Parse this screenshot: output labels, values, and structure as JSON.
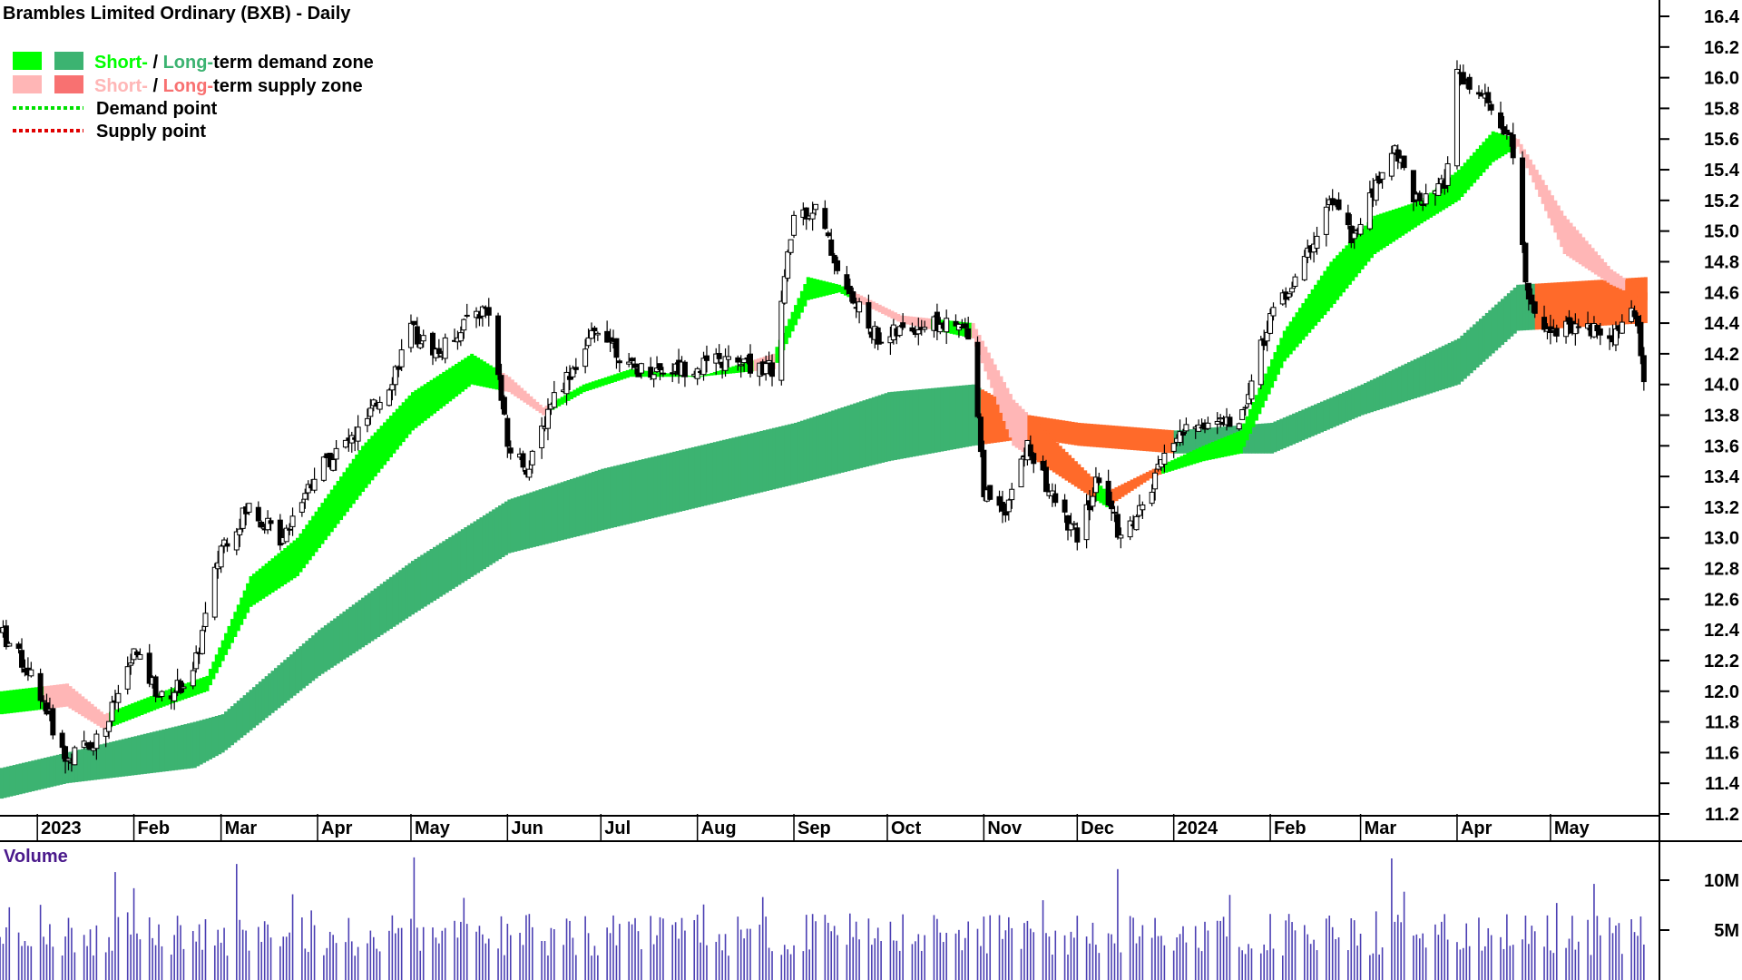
{
  "chart_data": [
    {
      "type": "candlestick",
      "title": "Brambles Limited Ordinary (BXB) - Daily",
      "ylim": [
        11.2,
        16.4
      ],
      "yticks": [
        "16.4",
        "16.2",
        "16.0",
        "15.8",
        "15.6",
        "15.4",
        "15.2",
        "15.0",
        "14.8",
        "14.6",
        "14.4",
        "14.2",
        "14.0",
        "13.8",
        "13.6",
        "13.4",
        "13.2",
        "13.0",
        "12.8",
        "12.6",
        "12.4",
        "12.2",
        "12.0",
        "11.8",
        "11.6",
        "11.4",
        "11.2"
      ],
      "x_range": [
        "2022-12-20",
        "2024-06-05"
      ],
      "months": [
        {
          "label": "2023",
          "date": "2023-01-01"
        },
        {
          "label": "Feb",
          "date": "2023-02-01"
        },
        {
          "label": "Mar",
          "date": "2023-03-01"
        },
        {
          "label": "Apr",
          "date": "2023-04-01"
        },
        {
          "label": "May",
          "date": "2023-05-01"
        },
        {
          "label": "Jun",
          "date": "2023-06-01"
        },
        {
          "label": "Jul",
          "date": "2023-07-01"
        },
        {
          "label": "Aug",
          "date": "2023-08-01"
        },
        {
          "label": "Sep",
          "date": "2023-09-01"
        },
        {
          "label": "Oct",
          "date": "2023-10-01"
        },
        {
          "label": "Nov",
          "date": "2023-11-01"
        },
        {
          "label": "Dec",
          "date": "2023-12-01"
        },
        {
          "label": "2024",
          "date": "2024-01-01"
        },
        {
          "label": "Feb",
          "date": "2024-02-01"
        },
        {
          "label": "Mar",
          "date": "2024-03-01"
        },
        {
          "label": "Apr",
          "date": "2024-04-01"
        },
        {
          "label": "May",
          "date": "2024-05-01"
        }
      ],
      "price_path": [
        [
          "2022-12-20",
          12.4
        ],
        [
          "2023-01-01",
          12.05
        ],
        [
          "2023-01-10",
          11.55
        ],
        [
          "2023-01-22",
          11.72
        ],
        [
          "2023-02-01",
          12.25
        ],
        [
          "2023-02-10",
          11.95
        ],
        [
          "2023-02-20",
          12.1
        ],
        [
          "2023-03-01",
          12.95
        ],
        [
          "2023-03-10",
          13.2
        ],
        [
          "2023-03-20",
          13.0
        ],
        [
          "2023-04-01",
          13.45
        ],
        [
          "2023-04-15",
          13.7
        ],
        [
          "2023-04-25",
          14.05
        ],
        [
          "2023-05-01",
          14.35
        ],
        [
          "2023-05-10",
          14.2
        ],
        [
          "2023-05-20",
          14.45
        ],
        [
          "2023-05-26",
          14.5
        ],
        [
          "2023-06-01",
          13.6
        ],
        [
          "2023-06-08",
          13.45
        ],
        [
          "2023-06-15",
          13.9
        ],
        [
          "2023-06-25",
          14.2
        ],
        [
          "2023-07-01",
          14.4
        ],
        [
          "2023-07-10",
          14.1
        ],
        [
          "2023-07-25",
          14.1
        ],
        [
          "2023-08-10",
          14.15
        ],
        [
          "2023-08-25",
          14.1
        ],
        [
          "2023-09-01",
          15.1
        ],
        [
          "2023-09-08",
          15.15
        ],
        [
          "2023-09-18",
          14.6
        ],
        [
          "2023-09-28",
          14.3
        ],
        [
          "2023-10-15",
          14.4
        ],
        [
          "2023-10-28",
          14.35
        ],
        [
          "2023-11-01",
          13.3
        ],
        [
          "2023-11-08",
          13.2
        ],
        [
          "2023-11-15",
          13.6
        ],
        [
          "2023-11-22",
          13.3
        ],
        [
          "2023-12-01",
          13.0
        ],
        [
          "2023-12-08",
          13.4
        ],
        [
          "2023-12-15",
          13.0
        ],
        [
          "2023-12-22",
          13.2
        ],
        [
          "2024-01-01",
          13.65
        ],
        [
          "2024-01-10",
          13.75
        ],
        [
          "2024-01-22",
          13.75
        ],
        [
          "2024-02-01",
          14.45
        ],
        [
          "2024-02-10",
          14.7
        ],
        [
          "2024-02-20",
          15.2
        ],
        [
          "2024-02-28",
          14.95
        ],
        [
          "2024-03-05",
          15.25
        ],
        [
          "2024-03-12",
          15.55
        ],
        [
          "2024-03-20",
          15.15
        ],
        [
          "2024-03-28",
          15.3
        ],
        [
          "2024-04-01",
          16.0
        ],
        [
          "2024-04-10",
          15.85
        ],
        [
          "2024-04-18",
          15.6
        ],
        [
          "2024-04-24",
          14.55
        ],
        [
          "2024-05-01",
          14.35
        ],
        [
          "2024-05-10",
          14.4
        ],
        [
          "2024-05-20",
          14.3
        ],
        [
          "2024-05-28",
          14.5
        ],
        [
          "2024-05-31",
          14.0
        ]
      ],
      "long_zone": [
        [
          "2022-12-20",
          11.5,
          11.3
        ],
        [
          "2023-01-10",
          11.6,
          11.4
        ],
        [
          "2023-02-20",
          11.8,
          11.5
        ],
        [
          "2023-03-01",
          11.85,
          11.6
        ],
        [
          "2023-04-01",
          12.4,
          12.1
        ],
        [
          "2023-05-01",
          12.85,
          12.5
        ],
        [
          "2023-06-01",
          13.25,
          12.9
        ],
        [
          "2023-07-01",
          13.45,
          13.05
        ],
        [
          "2023-08-01",
          13.6,
          13.2
        ],
        [
          "2023-09-01",
          13.75,
          13.35
        ],
        [
          "2023-10-01",
          13.95,
          13.5
        ],
        [
          "2023-10-28",
          14.0,
          13.6
        ],
        [
          "2023-11-15",
          13.8,
          13.65
        ],
        [
          "2023-12-01",
          13.75,
          13.6
        ],
        [
          "2024-01-01",
          13.7,
          13.55
        ],
        [
          "2024-02-01",
          13.75,
          13.55
        ],
        [
          "2024-03-01",
          14.0,
          13.8
        ],
        [
          "2024-04-01",
          14.3,
          14.0
        ],
        [
          "2024-04-20",
          14.65,
          14.35
        ],
        [
          "2024-05-31",
          14.7,
          14.4
        ]
      ],
      "short_zone": [
        [
          "2022-12-20",
          12.0,
          11.85
        ],
        [
          "2023-01-10",
          12.05,
          11.9
        ],
        [
          "2023-01-22",
          11.85,
          11.75
        ],
        [
          "2023-02-10",
          12.0,
          11.9
        ],
        [
          "2023-02-24",
          12.1,
          12.0
        ],
        [
          "2023-03-10",
          12.75,
          12.55
        ],
        [
          "2023-03-25",
          13.0,
          12.75
        ],
        [
          "2023-04-15",
          13.6,
          13.3
        ],
        [
          "2023-05-01",
          13.95,
          13.7
        ],
        [
          "2023-05-20",
          14.2,
          14.0
        ],
        [
          "2023-06-01",
          14.05,
          13.95
        ],
        [
          "2023-06-12",
          13.85,
          13.8
        ],
        [
          "2023-06-25",
          14.0,
          13.95
        ],
        [
          "2023-07-10",
          14.1,
          14.05
        ],
        [
          "2023-08-01",
          14.05,
          14.05
        ],
        [
          "2023-08-25",
          14.2,
          14.1
        ],
        [
          "2023-09-05",
          14.7,
          14.55
        ],
        [
          "2023-09-15",
          14.65,
          14.6
        ],
        [
          "2023-10-05",
          14.45,
          14.4
        ],
        [
          "2023-10-28",
          14.4,
          14.3
        ],
        [
          "2023-11-10",
          13.9,
          13.6
        ],
        [
          "2023-11-25",
          13.6,
          13.4
        ],
        [
          "2023-12-10",
          13.3,
          13.2
        ],
        [
          "2023-12-25",
          13.45,
          13.4
        ],
        [
          "2024-01-10",
          13.6,
          13.5
        ],
        [
          "2024-01-22",
          13.7,
          13.55
        ],
        [
          "2024-02-05",
          14.35,
          14.15
        ],
        [
          "2024-02-20",
          14.8,
          14.5
        ],
        [
          "2024-03-05",
          15.1,
          14.85
        ],
        [
          "2024-03-20",
          15.2,
          15.05
        ],
        [
          "2024-04-01",
          15.4,
          15.2
        ],
        [
          "2024-04-12",
          15.65,
          15.45
        ],
        [
          "2024-04-20",
          15.6,
          15.55
        ],
        [
          "2024-05-05",
          15.1,
          14.85
        ],
        [
          "2024-05-20",
          14.75,
          14.65
        ],
        [
          "2024-05-31",
          14.6,
          14.55
        ]
      ],
      "legend": [
        {
          "short_color": "#00ff00",
          "long_color": "#3cb371",
          "short_text": "Short-",
          "sep": " / ",
          "long_text": "Long-",
          "rest": "term demand zone",
          "short_text_color": "#00ff00",
          "long_text_color": "#3cb371"
        },
        {
          "short_color": "#ffb6b6",
          "long_color": "#f87171",
          "short_text": "Short-",
          "sep": " / ",
          "long_text": "Long-",
          "rest": "term supply zone",
          "short_text_color": "#ffb6b6",
          "long_text_color": "#f87171"
        },
        {
          "line_color": "#00e000",
          "text": "Demand point"
        },
        {
          "line_color": "#e00000",
          "text": "Supply point"
        }
      ],
      "colors": {
        "demand_short": "#00ff00",
        "demand_long": "#3cb371",
        "supply_short": "#ffb6b6",
        "supply_long": "#ff6a2a",
        "candle": "#000000",
        "grid": "#000000"
      }
    },
    {
      "type": "bar",
      "title": "Volume",
      "yticks": [
        "10M",
        "5M"
      ],
      "ylim": [
        0,
        15000000
      ],
      "color": "#4b3fb3",
      "title_color": "#4b1a8c"
    }
  ]
}
